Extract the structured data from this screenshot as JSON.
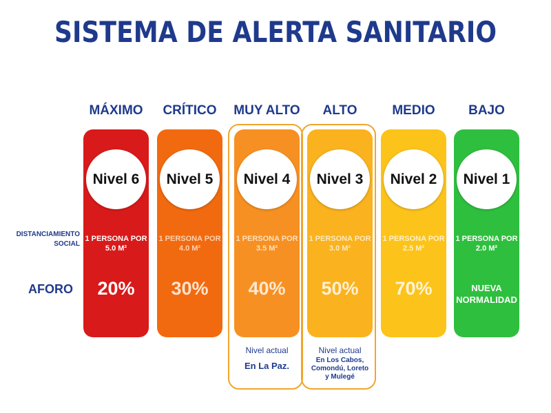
{
  "title": "SISTEMA DE ALERTA SANITARIO",
  "labels": {
    "dist_line1": "DISTANCIAMIENTO",
    "dist_line2": "SOCIAL",
    "aforo": "AFORO"
  },
  "levels": [
    {
      "name": "MÁXIMO",
      "nivel": "Nivel 6",
      "color": "#d91a1a",
      "dist1": "1 PERSONA POR",
      "dist2": "5.0 M²",
      "dist_color": "#ffffff",
      "aforo": "20%",
      "aforo_color": "#ffffff"
    },
    {
      "name": "CRÍTICO",
      "nivel": "Nivel 5",
      "color": "#f26a0f",
      "dist1": "1 PERSONA POR",
      "dist2": "4.0 M²",
      "dist_color": "#fbd2b3",
      "aforo": "30%",
      "aforo_color": "#fde3cf"
    },
    {
      "name": "MUY ALTO",
      "nivel": "Nivel 4",
      "color": "#f79022",
      "dist1": "1 PERSONA POR",
      "dist2": "3.5 M²",
      "dist_color": "#fde0bd",
      "aforo": "40%",
      "aforo_color": "#fee9d2",
      "note1": "Nivel actual",
      "note2": "En La Paz."
    },
    {
      "name": "ALTO",
      "nivel": "Nivel 3",
      "color": "#fab21e",
      "dist1": "1 PERSONA POR",
      "dist2": "3.0 M²",
      "dist_color": "#fde9bd",
      "aforo": "50%",
      "aforo_color": "#fef0d3",
      "note1": "Nivel actual",
      "note2a": "En Los Cabos,",
      "note2b": "Comondú, Loreto",
      "note2c": "y Mulegé"
    },
    {
      "name": "MEDIO",
      "nivel": "Nivel 2",
      "color": "#fcc31a",
      "dist1": "1 PERSONA POR",
      "dist2": "2.5 M²",
      "dist_color": "#fff0c6",
      "aforo": "70%",
      "aforo_color": "#fff4d8"
    },
    {
      "name": "BAJO",
      "nivel": "Nivel 1",
      "color": "#2fbf3f",
      "dist1": "1 PERSONA POR",
      "dist2": "2.0 M²",
      "dist_color": "#ffffff",
      "aforo_line1": "NUEVA",
      "aforo_line2": "NORMALIDAD",
      "aforo_color": "#ffffff"
    }
  ]
}
